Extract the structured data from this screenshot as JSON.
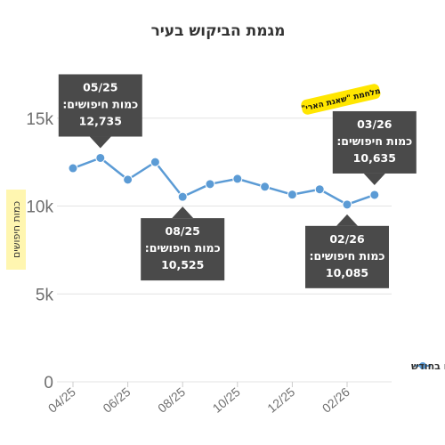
{
  "chart_data": {
    "type": "line",
    "title": "מגמת הביקוש בעיר",
    "ylabel": "כמות חיפושים",
    "ylim": [
      0,
      17500
    ],
    "yticks": [
      {
        "value": 0,
        "label": "0"
      },
      {
        "value": 5000,
        "label": "5k"
      },
      {
        "value": 10000,
        "label": "10k"
      },
      {
        "value": 15000,
        "label": "15k"
      }
    ],
    "xtick_labels": [
      "04/25",
      "06/25",
      "08/25",
      "10/25",
      "12/25",
      "02/26"
    ],
    "grid": true,
    "legend_position": "right",
    "series": [
      {
        "name": "חיפושים בחודש",
        "color": "#5b9bd5",
        "x": [
          "04/25",
          "05/25",
          "06/25",
          "07/25",
          "08/25",
          "09/25",
          "10/25",
          "11/25",
          "12/25",
          "01/26",
          "02/26",
          "03/26"
        ],
        "values": [
          12150,
          12735,
          11500,
          12500,
          10525,
          11250,
          11550,
          11100,
          10650,
          10950,
          10085,
          10635
        ]
      }
    ],
    "annotations": [
      {
        "x": "05/25",
        "month": "05/25",
        "label": "כמות חיפושים:",
        "value": "12,735",
        "side": "above"
      },
      {
        "x": "08/25",
        "month": "08/25",
        "label": "כמות חיפושים:",
        "value": "10,525",
        "side": "below"
      },
      {
        "x": "02/26",
        "month": "02/26",
        "label": "כמות חיפושים:",
        "value": "10,085",
        "side": "below"
      },
      {
        "x": "03/26",
        "month": "03/26",
        "label": "כמות חיפושים:",
        "value": "10,635",
        "side": "above"
      }
    ],
    "event_badge": {
      "text": "מלחמת \"שאגת הארי\"",
      "color": "#ffe600"
    }
  }
}
